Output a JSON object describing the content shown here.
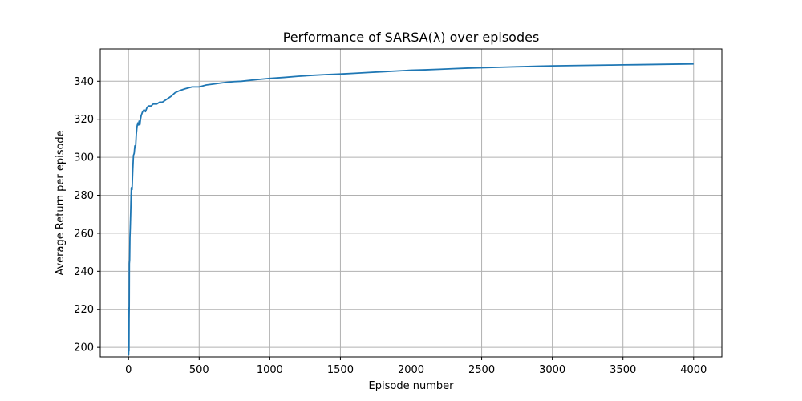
{
  "chart_data": {
    "type": "line",
    "title": "Performance of SARSA(λ) over episodes",
    "xlabel": "Episode number",
    "ylabel": "Average Return per episode",
    "xlim": [
      -200,
      4200
    ],
    "ylim": [
      195,
      357
    ],
    "x_ticks": [
      0,
      500,
      1000,
      1500,
      2000,
      2500,
      3000,
      3500,
      4000
    ],
    "x_tick_labels": [
      "0",
      "500",
      "1000",
      "1500",
      "2000",
      "2500",
      "3000",
      "3500",
      "4000"
    ],
    "y_ticks": [
      200,
      220,
      240,
      260,
      280,
      300,
      320,
      340
    ],
    "y_tick_labels": [
      "200",
      "220",
      "240",
      "260",
      "280",
      "300",
      "320",
      "340"
    ],
    "grid": true,
    "series": [
      {
        "name": "",
        "color": "#1f77b4",
        "x": [
          0,
          1,
          2,
          3,
          4,
          5,
          6,
          8,
          10,
          12,
          15,
          18,
          20,
          25,
          30,
          35,
          40,
          45,
          50,
          55,
          60,
          65,
          70,
          75,
          80,
          85,
          90,
          95,
          100,
          110,
          120,
          130,
          140,
          150,
          160,
          175,
          190,
          200,
          220,
          240,
          260,
          280,
          300,
          330,
          360,
          400,
          450,
          500,
          550,
          600,
          650,
          700,
          750,
          800,
          900,
          1000,
          1100,
          1200,
          1300,
          1400,
          1500,
          1600,
          1700,
          1800,
          1900,
          2000,
          2100,
          2200,
          2300,
          2400,
          2500,
          2600,
          2700,
          2800,
          2900,
          3000,
          3100,
          3200,
          3300,
          3400,
          3500,
          3600,
          3700,
          3800,
          3900,
          4000
        ],
        "values": [
          221,
          196,
          213,
          198,
          215,
          222,
          244,
          246,
          258,
          262,
          270,
          279,
          284,
          283,
          293,
          301,
          302,
          306,
          305,
          312,
          316,
          318,
          317,
          319,
          317,
          320,
          322,
          323,
          324,
          325,
          324,
          326,
          327,
          327,
          327,
          328,
          328,
          328,
          329,
          329,
          330,
          331,
          332,
          334,
          335,
          336,
          337,
          337,
          338,
          338.5,
          339,
          339.5,
          339.8,
          340,
          340.8,
          341.5,
          342,
          342.6,
          343.1,
          343.5,
          343.8,
          344.2,
          344.6,
          345,
          345.4,
          345.8,
          346,
          346.3,
          346.6,
          346.9,
          347.1,
          347.3,
          347.5,
          347.7,
          347.9,
          348.1,
          348.2,
          348.3,
          348.4,
          348.5,
          348.6,
          348.7,
          348.8,
          348.9,
          349,
          349.1
        ]
      }
    ]
  }
}
